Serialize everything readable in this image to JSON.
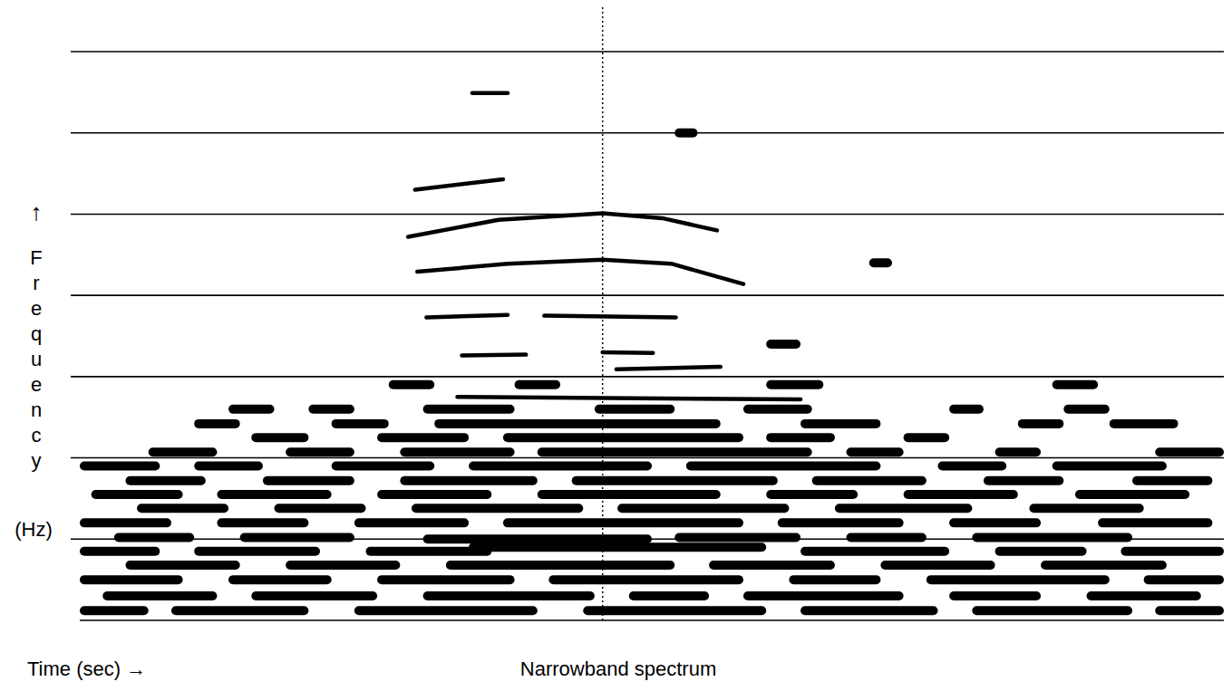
{
  "chart_data": {
    "type": "spectrogram",
    "title": "Narrowband spectrum",
    "x_label": "Time (sec) →",
    "y_label": "Frequency",
    "y_label_arrow": "↑",
    "y_unit": "(Hz)",
    "xlim": [
      0,
      100
    ],
    "ylim": [
      0,
      7
    ],
    "yticks": [
      0,
      1,
      2,
      3,
      4,
      5,
      6,
      7
    ],
    "grid": true,
    "tick_labels": false,
    "color": "#000000",
    "cursor_x": 45.7,
    "series": [
      {
        "color": "#000000",
        "x": [
          34.3,
          37.4
        ],
        "values": [
          6.49,
          6.49
        ]
      },
      {
        "color": "#000000",
        "x": [
          29.3,
          37.0
        ],
        "values": [
          5.3,
          5.43
        ]
      },
      {
        "color": "#000000",
        "x": [
          28.7,
          36.6,
          45.7,
          50.9,
          55.7
        ],
        "values": [
          4.72,
          4.93,
          5.01,
          4.95,
          4.8
        ]
      },
      {
        "color": "#000000",
        "x": [
          29.5,
          37.4,
          45.7,
          51.7,
          58.0
        ],
        "values": [
          4.29,
          4.39,
          4.44,
          4.39,
          4.14
        ]
      },
      {
        "color": "#000000",
        "x": [
          30.3,
          37.4,
          38.9,
          40.6,
          52.1
        ],
        "values": [
          3.73,
          3.76,
          null,
          3.75,
          3.73
        ]
      },
      {
        "color": "#000000",
        "x": [
          33.4,
          39.0,
          39.8,
          45.7,
          50.1
        ],
        "values": [
          3.26,
          3.27,
          null,
          3.3,
          3.29
        ]
      },
      {
        "color": "#000000",
        "x": [
          46.9,
          56.0
        ],
        "values": [
          3.09,
          3.12
        ]
      },
      {
        "color": "#000000",
        "x": [
          33.0,
          63.0
        ],
        "values": [
          2.75,
          2.72
        ]
      }
    ],
    "streaks": [
      [
        0,
        6,
        0.12
      ],
      [
        8,
        20,
        0.12
      ],
      [
        24,
        40,
        0.12
      ],
      [
        44,
        60,
        0.12
      ],
      [
        63,
        75,
        0.12
      ],
      [
        78,
        92,
        0.12
      ],
      [
        94,
        100,
        0.12
      ],
      [
        2,
        12,
        0.3
      ],
      [
        15,
        26,
        0.3
      ],
      [
        30,
        45,
        0.3
      ],
      [
        48,
        55,
        0.3
      ],
      [
        58,
        72,
        0.3
      ],
      [
        76,
        84,
        0.3
      ],
      [
        88,
        98,
        0.3
      ],
      [
        0,
        9,
        0.5
      ],
      [
        13,
        22,
        0.5
      ],
      [
        26,
        38,
        0.5
      ],
      [
        41,
        58,
        0.5
      ],
      [
        62,
        70,
        0.5
      ],
      [
        74,
        90,
        0.5
      ],
      [
        93,
        100,
        0.5
      ],
      [
        4,
        14,
        0.68
      ],
      [
        18,
        28,
        0.68
      ],
      [
        32,
        52,
        0.68
      ],
      [
        55,
        66,
        0.68
      ],
      [
        70,
        80,
        0.68
      ],
      [
        84,
        95,
        0.68
      ],
      [
        0,
        7,
        0.85
      ],
      [
        10,
        21,
        0.85
      ],
      [
        25,
        36,
        0.85
      ],
      [
        34,
        60,
        0.9
      ],
      [
        63,
        76,
        0.85
      ],
      [
        80,
        88,
        0.85
      ],
      [
        91,
        100,
        0.85
      ],
      [
        3,
        10,
        1.02
      ],
      [
        14,
        24,
        1.02
      ],
      [
        30,
        50,
        1.0
      ],
      [
        52,
        63,
        1.02
      ],
      [
        67,
        74,
        1.02
      ],
      [
        78,
        92,
        1.02
      ],
      [
        0,
        8,
        1.2
      ],
      [
        12,
        20,
        1.2
      ],
      [
        24,
        34,
        1.2
      ],
      [
        37,
        58,
        1.2
      ],
      [
        61,
        72,
        1.2
      ],
      [
        76,
        84,
        1.2
      ],
      [
        89,
        99,
        1.2
      ],
      [
        5,
        13,
        1.38
      ],
      [
        17,
        25,
        1.38
      ],
      [
        29,
        44,
        1.38
      ],
      [
        47,
        62,
        1.38
      ],
      [
        66,
        78,
        1.38
      ],
      [
        83,
        93,
        1.38
      ],
      [
        1,
        9,
        1.55
      ],
      [
        12,
        22,
        1.55
      ],
      [
        26,
        36,
        1.55
      ],
      [
        40,
        56,
        1.55
      ],
      [
        60,
        68,
        1.55
      ],
      [
        72,
        82,
        1.55
      ],
      [
        87,
        97,
        1.55
      ],
      [
        4,
        11,
        1.72
      ],
      [
        16,
        24,
        1.72
      ],
      [
        28,
        40,
        1.72
      ],
      [
        43,
        61,
        1.72
      ],
      [
        64,
        74,
        1.72
      ],
      [
        79,
        86,
        1.72
      ],
      [
        92,
        99,
        1.72
      ],
      [
        0,
        7,
        1.9
      ],
      [
        10,
        16,
        1.9
      ],
      [
        22,
        31,
        1.9
      ],
      [
        34,
        50,
        1.9
      ],
      [
        53,
        70,
        1.9
      ],
      [
        75,
        81,
        1.9
      ],
      [
        85,
        95,
        1.9
      ],
      [
        6,
        12,
        2.07
      ],
      [
        18,
        24,
        2.07
      ],
      [
        28,
        38,
        2.07
      ],
      [
        40,
        64,
        2.07
      ],
      [
        67,
        72,
        2.07
      ],
      [
        80,
        84,
        2.07
      ],
      [
        94,
        100,
        2.07
      ],
      [
        15,
        20,
        2.25
      ],
      [
        26,
        34,
        2.25
      ],
      [
        37,
        58,
        2.25
      ],
      [
        60,
        66,
        2.25
      ],
      [
        72,
        76,
        2.25
      ],
      [
        10,
        14,
        2.42
      ],
      [
        22,
        27,
        2.42
      ],
      [
        31,
        56,
        2.42
      ],
      [
        63,
        70,
        2.42
      ],
      [
        82,
        86,
        2.42
      ],
      [
        90,
        96,
        2.42
      ],
      [
        13,
        17,
        2.6
      ],
      [
        20,
        24,
        2.6
      ],
      [
        30,
        38,
        2.6
      ],
      [
        45,
        52,
        2.6
      ],
      [
        58,
        64,
        2.6
      ],
      [
        76,
        79,
        2.6
      ],
      [
        86,
        90,
        2.6
      ],
      [
        27,
        31,
        2.9
      ],
      [
        38,
        42,
        2.9
      ],
      [
        60,
        65,
        2.9
      ],
      [
        85,
        89,
        2.9
      ],
      [
        60,
        63,
        3.4
      ],
      [
        69,
        71,
        4.4
      ],
      [
        52,
        54,
        6.0
      ]
    ]
  }
}
